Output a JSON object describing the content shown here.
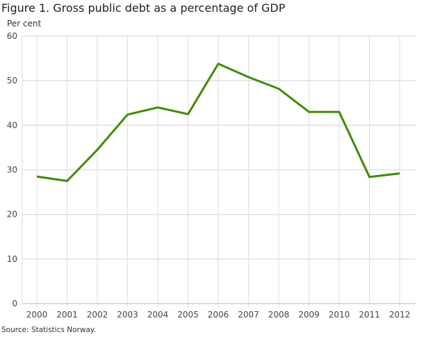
{
  "chart_data": {
    "type": "line",
    "title": "Figure 1. Gross public debt as a percentage of GDP",
    "ylabel": "Per cent",
    "xlabel": "",
    "source": "Source: Statistics Norway.",
    "categories": [
      "2000",
      "2001",
      "2002",
      "2003",
      "2004",
      "2005",
      "2006",
      "2007",
      "2008",
      "2009",
      "2010",
      "2011",
      "2012"
    ],
    "series": [
      {
        "name": "Gross public debt",
        "color": "#3f8a04",
        "values": [
          28.5,
          27.5,
          34.5,
          42.4,
          44.0,
          42.5,
          53.8,
          50.8,
          48.2,
          43.0,
          43.0,
          28.4,
          29.2
        ]
      }
    ],
    "ylim": [
      0,
      60
    ],
    "yticks": [
      0,
      10,
      20,
      30,
      40,
      50,
      60
    ],
    "grid": true,
    "legend": "none"
  }
}
